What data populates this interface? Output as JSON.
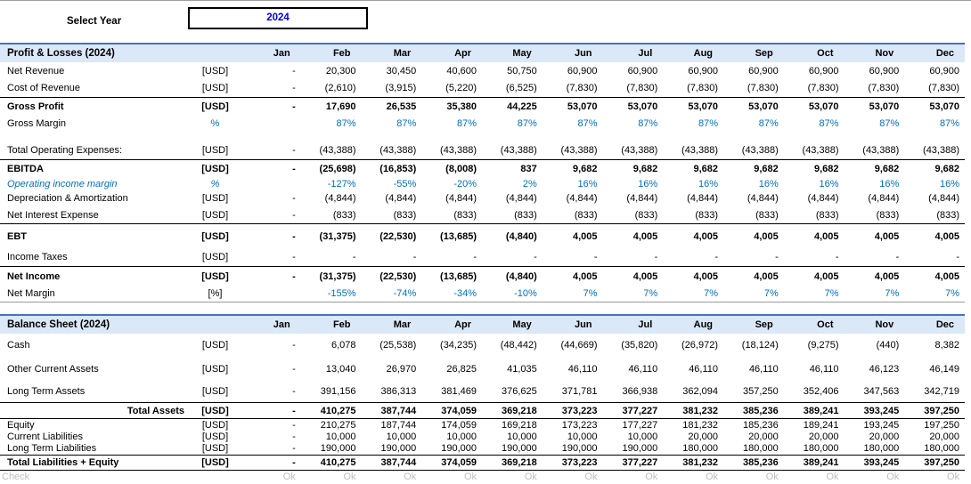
{
  "select_year": {
    "label": "Select Year",
    "value": "2024"
  },
  "columns": [
    "Jan",
    "Feb",
    "Mar",
    "Apr",
    "May",
    "Jun",
    "Jul",
    "Aug",
    "Sep",
    "Oct",
    "Nov",
    "Dec"
  ],
  "colors": {
    "band_fill": "#DBE8F7",
    "band_top_border": "#4472C4",
    "computed_blue": "#0070C0",
    "input_blue": "#0000EE",
    "check_gray": "#BFBFBF"
  },
  "sections": [
    {
      "title": "Profit & Losses (2024)",
      "rows": [
        {
          "label": "Net Revenue",
          "unit": "[USD]",
          "style": "h19",
          "values": [
            "-",
            "20,300",
            "30,450",
            "40,600",
            "50,750",
            "60,900",
            "60,900",
            "60,900",
            "60,900",
            "60,900",
            "60,900",
            "60,900"
          ]
        },
        {
          "label": "Cost of Revenue",
          "unit": "[USD]",
          "style": "h20",
          "values": [
            "-",
            "(2,610)",
            "(3,915)",
            "(5,220)",
            "(6,525)",
            "(7,830)",
            "(7,830)",
            "(7,830)",
            "(7,830)",
            "(7,830)",
            "(7,830)",
            "(7,830)"
          ]
        },
        {
          "label": "Gross Profit",
          "unit": "[USD]",
          "style": "bold top h19",
          "values": [
            "-",
            "17,690",
            "26,535",
            "35,380",
            "44,225",
            "53,070",
            "53,070",
            "53,070",
            "53,070",
            "53,070",
            "53,070",
            "53,070"
          ]
        },
        {
          "label": "Gross Margin",
          "unit": "%",
          "style": "pct h20",
          "values": [
            "",
            "87%",
            "87%",
            "87%",
            "87%",
            "87%",
            "87%",
            "87%",
            "87%",
            "87%",
            "87%",
            "87%"
          ]
        },
        {
          "label": "",
          "unit": "",
          "style": "spacer h10",
          "values": []
        },
        {
          "label": "Total Operating Expenses:",
          "unit": "[USD]",
          "style": "h20",
          "values": [
            "-",
            "(43,388)",
            "(43,388)",
            "(43,388)",
            "(43,388)",
            "(43,388)",
            "(43,388)",
            "(43,388)",
            "(43,388)",
            "(43,388)",
            "(43,388)",
            "(43,388)"
          ]
        },
        {
          "label": "EBITDA",
          "unit": "[USD]",
          "style": "bold top h19",
          "values": [
            "-",
            "(25,698)",
            "(16,853)",
            "(8,008)",
            "837",
            "9,682",
            "9,682",
            "9,682",
            "9,682",
            "9,682",
            "9,682",
            "9,682"
          ]
        },
        {
          "label": "Operating income margin",
          "unit": "%",
          "style": "pct italic h15",
          "values": [
            "",
            "-127%",
            "-55%",
            "-20%",
            "2%",
            "16%",
            "16%",
            "16%",
            "16%",
            "16%",
            "16%",
            "16%"
          ]
        },
        {
          "label": "Depreciation & Amortization",
          "unit": "[USD]",
          "style": "h18",
          "values": [
            "-",
            "(4,844)",
            "(4,844)",
            "(4,844)",
            "(4,844)",
            "(4,844)",
            "(4,844)",
            "(4,844)",
            "(4,844)",
            "(4,844)",
            "(4,844)",
            "(4,844)"
          ]
        },
        {
          "label": "Net Interest Expense",
          "unit": "[USD]",
          "style": "h19",
          "values": [
            "-",
            "(833)",
            "(833)",
            "(833)",
            "(833)",
            "(833)",
            "(833)",
            "(833)",
            "(833)",
            "(833)",
            "(833)",
            "(833)"
          ]
        },
        {
          "label": "EBT",
          "unit": "[USD]",
          "style": "bold top h27",
          "values": [
            "-",
            "(31,375)",
            "(22,530)",
            "(13,685)",
            "(4,840)",
            "4,005",
            "4,005",
            "4,005",
            "4,005",
            "4,005",
            "4,005",
            "4,005"
          ]
        },
        {
          "label": "Income Taxes",
          "unit": "[USD]",
          "style": "h20",
          "values": [
            "-",
            "-",
            "-",
            "-",
            "-",
            "-",
            "-",
            "-",
            "-",
            "-",
            "-",
            "-"
          ]
        },
        {
          "label": "Net Income",
          "unit": "[USD]",
          "style": "bold top h21",
          "values": [
            "-",
            "(31,375)",
            "(22,530)",
            "(13,685)",
            "(4,840)",
            "4,005",
            "4,005",
            "4,005",
            "4,005",
            "4,005",
            "4,005",
            "4,005"
          ]
        },
        {
          "label": "Net Margin",
          "unit": "[%]",
          "style": "pctval thinbottom h18",
          "values": [
            "",
            "-155%",
            "-74%",
            "-34%",
            "-10%",
            "7%",
            "7%",
            "7%",
            "7%",
            "7%",
            "7%",
            "7%"
          ]
        }
      ]
    },
    {
      "title": "Balance Sheet (2024)",
      "rows": [
        {
          "label": "Cash",
          "unit": "[USD]",
          "style": "h26",
          "values": [
            "-",
            "6,078",
            "(25,538)",
            "(34,235)",
            "(48,442)",
            "(44,669)",
            "(35,820)",
            "(26,972)",
            "(18,124)",
            "(9,275)",
            "(440)",
            "8,382"
          ]
        },
        {
          "label": "Other Current Assets",
          "unit": "[USD]",
          "style": "h27",
          "values": [
            "-",
            "13,040",
            "26,970",
            "26,825",
            "41,035",
            "46,110",
            "46,110",
            "46,110",
            "46,110",
            "46,110",
            "46,123",
            "46,149"
          ]
        },
        {
          "label": "Long Term Assets",
          "unit": "[USD]",
          "style": "h24",
          "values": [
            "-",
            "391,156",
            "386,313",
            "381,469",
            "376,625",
            "371,781",
            "366,938",
            "362,094",
            "357,250",
            "352,406",
            "347,563",
            "342,719"
          ]
        },
        {
          "label": "Total Assets",
          "unit": "[USD]",
          "style": "bold top bottom labelright h17",
          "values": [
            "-",
            "410,275",
            "387,744",
            "374,059",
            "369,218",
            "373,223",
            "377,227",
            "381,232",
            "385,236",
            "389,241",
            "393,245",
            "397,250"
          ]
        },
        {
          "label": "Equity",
          "unit": "[USD]",
          "style": "h13",
          "values": [
            "-",
            "210,275",
            "187,744",
            "174,059",
            "169,218",
            "173,223",
            "177,227",
            "181,232",
            "185,236",
            "189,241",
            "193,245",
            "197,250"
          ]
        },
        {
          "label": "Current Liabilities",
          "unit": "[USD]",
          "style": "h13",
          "values": [
            "-",
            "10,000",
            "10,000",
            "10,000",
            "10,000",
            "10,000",
            "10,000",
            "20,000",
            "20,000",
            "20,000",
            "20,000",
            "20,000"
          ]
        },
        {
          "label": "Long Term Liabilities",
          "unit": "[USD]",
          "style": "h14",
          "values": [
            "-",
            "190,000",
            "190,000",
            "190,000",
            "190,000",
            "190,000",
            "190,000",
            "180,000",
            "180,000",
            "180,000",
            "180,000",
            "180,000"
          ]
        },
        {
          "label": "Total Liabilities + Equity",
          "unit": "[USD]",
          "style": "bold top bottom h16",
          "values": [
            "-",
            "410,275",
            "387,744",
            "374,059",
            "369,218",
            "373,223",
            "377,227",
            "381,232",
            "385,236",
            "389,241",
            "393,245",
            "397,250"
          ]
        },
        {
          "label": "Check",
          "unit": "",
          "style": "check h14",
          "values": [
            "Ok",
            "Ok",
            "Ok",
            "Ok",
            "Ok",
            "Ok",
            "Ok",
            "Ok",
            "Ok",
            "Ok",
            "Ok",
            "Ok"
          ]
        }
      ]
    }
  ]
}
